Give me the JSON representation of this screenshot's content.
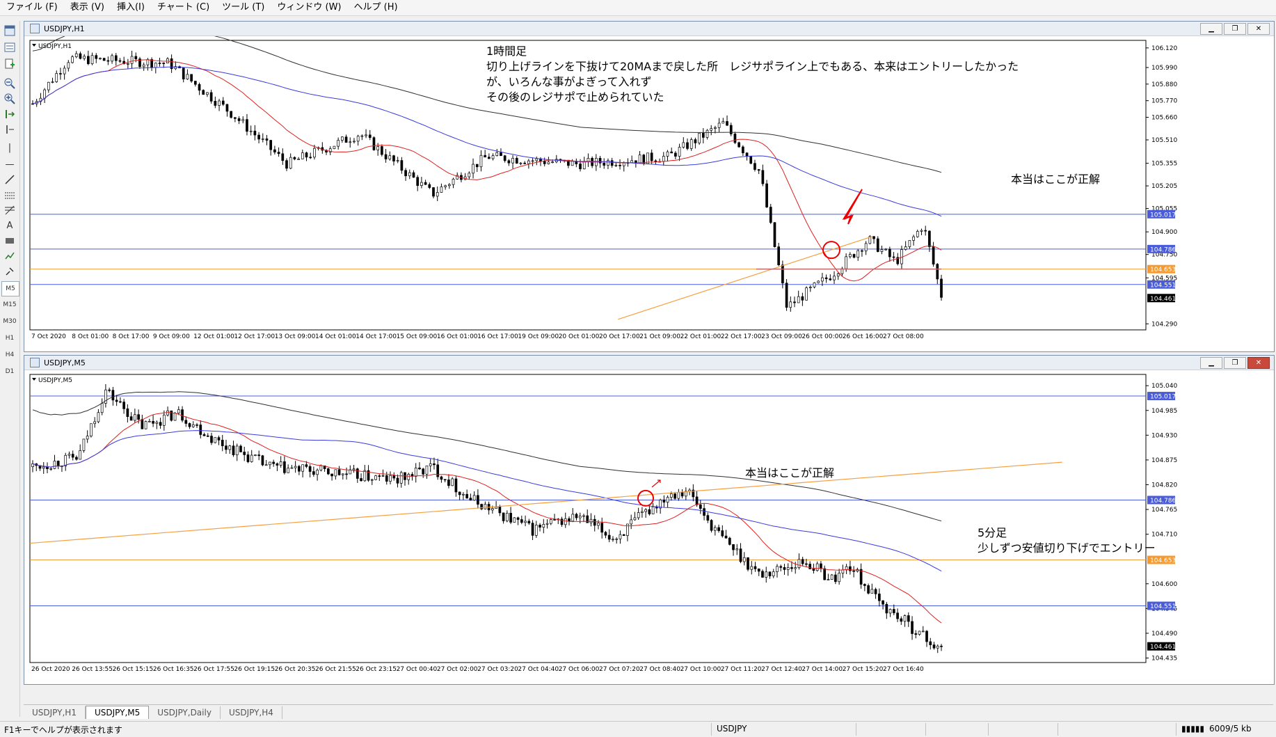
{
  "menu": [
    "ファイル (F)",
    "表示 (V)",
    "挿入(I)",
    "チャート (C)",
    "ツール (T)",
    "ウィンドウ (W)",
    "ヘルプ (H)"
  ],
  "toolbar": {
    "timeframes": [
      "M5",
      "M15",
      "M30",
      "H1",
      "H4",
      "D1"
    ]
  },
  "windows": {
    "h1": {
      "title": "USDJPY,H1",
      "symbol_label": "USDJPY,H1",
      "price_labels": [
        "106.120",
        "105.990",
        "105.880",
        "105.770",
        "105.660",
        "105.510",
        "105.355",
        "105.205",
        "105.055",
        "104.900",
        "104.750",
        "104.595",
        "104.461",
        "104.290"
      ],
      "hline_labels": [
        "105.017",
        "104.786",
        "104.653",
        "104.551",
        "104.461"
      ],
      "time_labels": [
        "7 Oct 2020",
        "8 Oct 01:00",
        "8 Oct 17:00",
        "9 Oct 09:00",
        "12 Oct 01:00",
        "12 Oct 17:00",
        "13 Oct 09:00",
        "14 Oct 01:00",
        "14 Oct 17:00",
        "15 Oct 09:00",
        "16 Oct 01:00",
        "16 Oct 17:00",
        "19 Oct 09:00",
        "20 Oct 01:00",
        "20 Oct 17:00",
        "21 Oct 09:00",
        "22 Oct 01:00",
        "22 Oct 17:00",
        "23 Oct 09:00",
        "26 Oct 00:00",
        "26 Oct 16:00",
        "27 Oct 08:00"
      ],
      "annotation_main": [
        "1時間足",
        "切り上げラインを下抜けて20MAまで戻した所　レジサポライン上でもある、本来はエントリーしたかった",
        "が、いろんな事がよぎって入れず",
        "その後のレジサポで止められていた"
      ],
      "annotation_arrow": "本当はここが正解"
    },
    "m5": {
      "title": "USDJPY,M5",
      "symbol_label": "USDJPY,M5",
      "price_labels": [
        "105.040",
        "104.985",
        "104.930",
        "104.875",
        "104.820",
        "104.765",
        "104.710",
        "104.600",
        "104.545",
        "104.490",
        "104.435"
      ],
      "hline_labels": [
        "105.017",
        "104.786",
        "104.653",
        "104.551",
        "104.461"
      ],
      "time_labels": [
        "26 Oct 2020",
        "26 Oct 13:55",
        "26 Oct 15:15",
        "26 Oct 16:35",
        "26 Oct 17:55",
        "26 Oct 19:15",
        "26 Oct 20:35",
        "26 Oct 21:55",
        "26 Oct 23:15",
        "27 Oct 00:40",
        "27 Oct 02:00",
        "27 Oct 03:20",
        "27 Oct 04:40",
        "27 Oct 06:00",
        "27 Oct 07:20",
        "27 Oct 08:40",
        "27 Oct 10:00",
        "27 Oct 11:20",
        "27 Oct 12:40",
        "27 Oct 14:00",
        "27 Oct 15:20",
        "27 Oct 16:40"
      ],
      "annotation_arrow": "本当はここが正解",
      "annotation_side": [
        "5分足",
        "少しずつ安値切り下げでエントリー"
      ]
    }
  },
  "tabs": [
    "USDJPY,H1",
    "USDJPY,M5",
    "USDJPY,Daily",
    "USDJPY,H4"
  ],
  "active_tab": 1,
  "status": {
    "help": "F1キーでヘルプが表示されます",
    "symbol": "USDJPY",
    "traffic": "6009/5 kb"
  },
  "colors": {
    "ma20": "#e02020",
    "ma75": "#3a3ae0",
    "ma200": "#303030",
    "trendline": "#f5a040",
    "hline_blue": "#4a5ce0",
    "hline_orange": "#f5a040",
    "label_blue": "#4a5cd8",
    "label_orange": "#f59a30"
  }
}
